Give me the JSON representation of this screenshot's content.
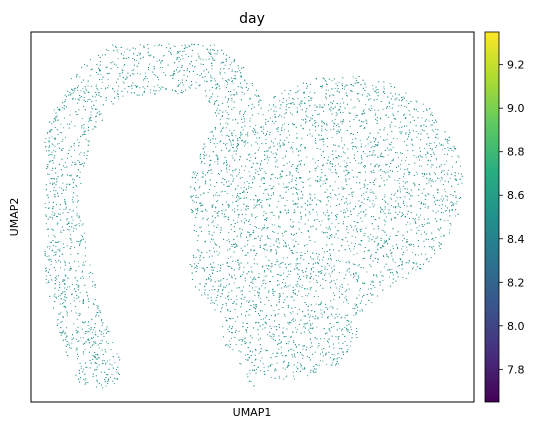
{
  "chart_data": {
    "type": "scatter",
    "title": "day",
    "xlabel": "UMAP1",
    "ylabel": "UMAP2",
    "point_color": "#26938b",
    "point_value": 8.5,
    "x_ticks_shown": false,
    "y_ticks_shown": false,
    "colorbar": {
      "label": "",
      "colormap": "viridis",
      "range": [
        7.65,
        9.35
      ],
      "ticks": [
        "7.8",
        "8.0",
        "8.2",
        "8.4",
        "8.6",
        "8.8",
        "9.0",
        "9.2"
      ],
      "tick_values": [
        7.8,
        8.0,
        8.2,
        8.4,
        8.6,
        8.8,
        9.0,
        9.2
      ]
    }
  }
}
